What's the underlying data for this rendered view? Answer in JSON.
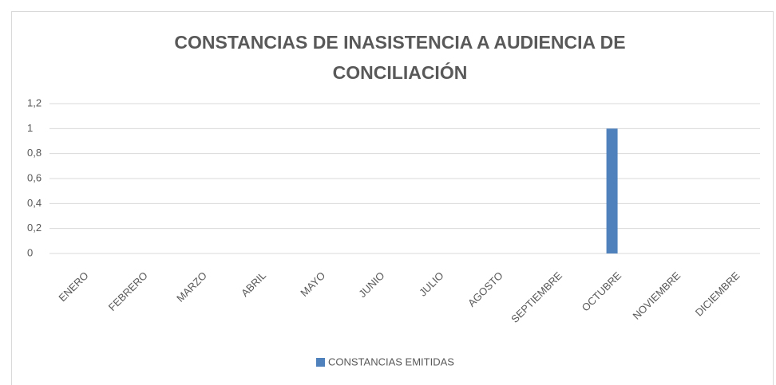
{
  "chart_data": {
    "type": "bar",
    "title": "CONSTANCIAS DE INASISTENCIA A AUDIENCIA DE CONCILIACIÓN",
    "categories": [
      "ENERO",
      "FEBRERO",
      "MARZO",
      "ABRIL",
      "MAYO",
      "JUNIO",
      "JULIO",
      "AGOSTO",
      "SEPTIEMBRE",
      "OCTUBRE",
      "NOVIEMBRE",
      "DICIEMBRE"
    ],
    "series": [
      {
        "name": "CONSTANCIAS EMITIDAS",
        "color": "#4f81bd",
        "values": [
          0,
          0,
          0,
          0,
          0,
          0,
          0,
          0,
          0,
          1,
          0,
          0
        ]
      }
    ],
    "ylim": [
      0,
      1.2
    ],
    "yticks": [
      0,
      {
        "value": 0.2,
        "label": "0,2"
      },
      {
        "value": 0.4,
        "label": "0,4"
      },
      {
        "value": 0.6,
        "label": "0,6"
      },
      {
        "value": 0.8,
        "label": "0,8"
      },
      1,
      {
        "value": 1.2,
        "label": "1,2"
      }
    ],
    "grid": true,
    "legend": "bottom"
  }
}
